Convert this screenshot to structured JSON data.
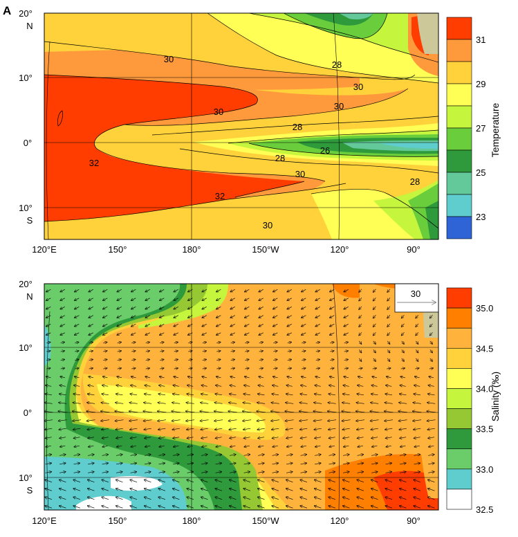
{
  "panel_label": "A",
  "x_ticks": [
    "120°E",
    "150°",
    "180°",
    "150°W",
    "120°",
    "90°"
  ],
  "y_ticks_top": [
    {
      "deg": "20°",
      "hemi": "N"
    },
    {
      "deg": "10°",
      "hemi": ""
    },
    {
      "deg": "0°",
      "hemi": ""
    },
    {
      "deg": "10°",
      "hemi": "S"
    }
  ],
  "y_ticks_bottom": [
    {
      "deg": "20°",
      "hemi": "N"
    },
    {
      "deg": "10°",
      "hemi": ""
    },
    {
      "deg": "0°",
      "hemi": ""
    },
    {
      "deg": "10°",
      "hemi": "S"
    }
  ],
  "chart_data": [
    {
      "type": "heatmap",
      "title": "",
      "colorbar_title": "Temperature",
      "colorbar_labels": [
        "31",
        "29",
        "27",
        "25",
        "23"
      ],
      "colorbar_colors": [
        "#ff3d00",
        "#ff9a3c",
        "#ffd23c",
        "#ffff55",
        "#c5f53c",
        "#6acd3c",
        "#2e9a3c",
        "#63c99a",
        "#5fcdcd",
        "#2f64d6"
      ],
      "contour_labels": [
        "30",
        "28",
        "30",
        "30",
        "30",
        "28",
        "28",
        "26",
        "28",
        "32",
        "30",
        "28",
        "32",
        "30"
      ],
      "x_range_lon": [
        120,
        280
      ],
      "y_range_lat": [
        -14,
        20
      ]
    },
    {
      "type": "heatmap",
      "title": "",
      "colorbar_title": "Salinity (‰)",
      "colorbar_labels": [
        "35.0",
        "34.5",
        "34.0",
        "33.5",
        "33.0",
        "32.5"
      ],
      "colorbar_colors": [
        "#ff3d00",
        "#ff8000",
        "#ffb23c",
        "#ffd23c",
        "#ffff55",
        "#c5f53c",
        "#95c832",
        "#2e9a3c",
        "#6acd6a",
        "#5fcdcd",
        "#ffffff"
      ],
      "vector_reference_label": "30",
      "x_range_lon": [
        120,
        280
      ],
      "y_range_lat": [
        -14,
        20
      ]
    }
  ],
  "colors": {
    "land": "#cdc89a",
    "line": "#000000"
  }
}
